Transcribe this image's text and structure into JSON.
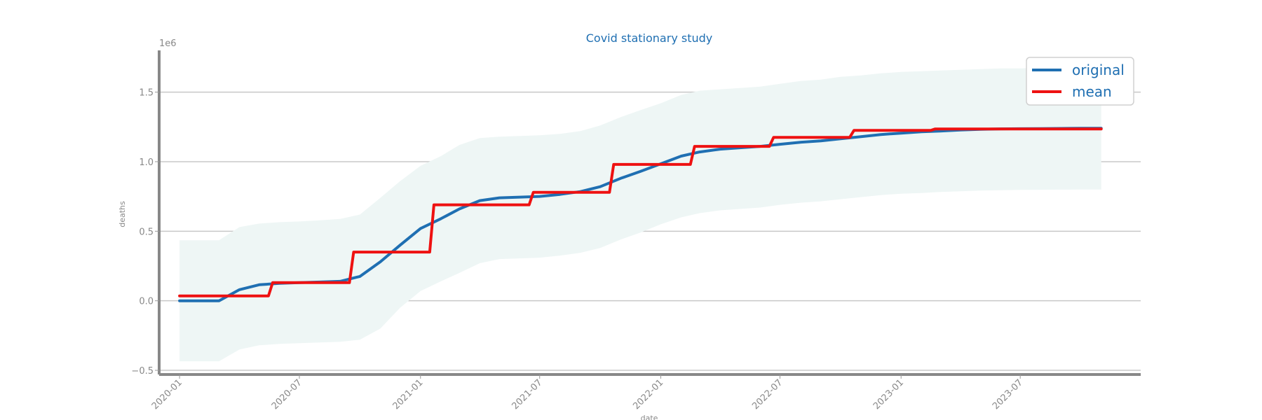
{
  "chart_data": {
    "type": "line",
    "title": "Covid stationary study",
    "xlabel": "date",
    "ylabel": "deaths",
    "y_offset_label": "1e6",
    "xlim": [
      "2019-12-01",
      "2023-12-31"
    ],
    "ylim": [
      -0.53,
      1.8
    ],
    "grid": "horizontal",
    "legend_position": "top-right",
    "x_ticks": [
      "2020-01",
      "2020-07",
      "2021-01",
      "2021-07",
      "2022-01",
      "2022-07",
      "2023-01",
      "2023-07"
    ],
    "y_ticks": [
      "−0.5",
      "0.0",
      "0.5",
      "1.0",
      "1.5"
    ],
    "y_tick_values": [
      -0.5,
      0,
      0.5,
      1.0,
      1.5
    ],
    "x": [
      "2020-01-01",
      "2020-03-01",
      "2020-04-01",
      "2020-05-01",
      "2020-06-01",
      "2020-07-01",
      "2020-08-01",
      "2020-09-01",
      "2020-10-01",
      "2020-11-01",
      "2020-12-01",
      "2021-01-01",
      "2021-02-01",
      "2021-03-01",
      "2021-04-01",
      "2021-05-01",
      "2021-06-01",
      "2021-07-01",
      "2021-08-01",
      "2021-09-01",
      "2021-10-01",
      "2021-11-01",
      "2021-12-01",
      "2022-01-01",
      "2022-02-01",
      "2022-03-01",
      "2022-04-01",
      "2022-05-01",
      "2022-06-01",
      "2022-07-01",
      "2022-08-01",
      "2022-09-01",
      "2022-10-01",
      "2022-11-01",
      "2022-12-01",
      "2023-01-01",
      "2023-02-01",
      "2023-03-01",
      "2023-04-01",
      "2023-05-01",
      "2023-06-01",
      "2023-07-01",
      "2023-08-01",
      "2023-09-01",
      "2023-10-01",
      "2023-11-01"
    ],
    "series": [
      {
        "name": "original",
        "color": "#1f6fb2",
        "values": [
          0.0,
          0.0,
          0.08,
          0.115,
          0.125,
          0.13,
          0.135,
          0.14,
          0.175,
          0.28,
          0.4,
          0.52,
          0.59,
          0.66,
          0.72,
          0.74,
          0.745,
          0.75,
          0.765,
          0.785,
          0.82,
          0.88,
          0.93,
          0.985,
          1.04,
          1.07,
          1.09,
          1.1,
          1.11,
          1.125,
          1.14,
          1.15,
          1.165,
          1.18,
          1.195,
          1.205,
          1.215,
          1.22,
          1.228,
          1.233,
          1.236,
          1.237,
          1.238,
          1.239,
          1.24,
          1.24
        ]
      },
      {
        "name": "mean",
        "color": "#ee1111",
        "steps": [
          {
            "from": "2020-01-01",
            "to": "2020-05-15",
            "value": 0.035
          },
          {
            "from": "2020-05-15",
            "to": "2020-09-15",
            "value": 0.13
          },
          {
            "from": "2020-09-15",
            "to": "2021-01-15",
            "value": 0.35
          },
          {
            "from": "2021-01-15",
            "to": "2021-06-15",
            "value": 0.69
          },
          {
            "from": "2021-06-15",
            "to": "2021-10-15",
            "value": 0.78
          },
          {
            "from": "2021-10-15",
            "to": "2022-02-15",
            "value": 0.98
          },
          {
            "from": "2022-02-15",
            "to": "2022-06-15",
            "value": 1.11
          },
          {
            "from": "2022-06-15",
            "to": "2022-10-15",
            "value": 1.175
          },
          {
            "from": "2022-10-15",
            "to": "2023-02-15",
            "value": 1.225
          },
          {
            "from": "2023-02-15",
            "to": "2023-11-01",
            "value": 1.235
          }
        ]
      }
    ],
    "band": {
      "color": "#eef6f5",
      "upper": [
        0.435,
        0.435,
        0.53,
        0.555,
        0.565,
        0.57,
        0.578,
        0.588,
        0.62,
        0.74,
        0.86,
        0.97,
        1.04,
        1.12,
        1.17,
        1.18,
        1.185,
        1.19,
        1.2,
        1.22,
        1.26,
        1.32,
        1.37,
        1.42,
        1.48,
        1.51,
        1.52,
        1.53,
        1.54,
        1.56,
        1.58,
        1.59,
        1.61,
        1.62,
        1.635,
        1.645,
        1.65,
        1.655,
        1.66,
        1.665,
        1.67,
        1.67,
        1.675,
        1.675,
        1.68,
        1.68
      ],
      "lower": [
        -0.435,
        -0.435,
        -0.35,
        -0.32,
        -0.31,
        -0.305,
        -0.3,
        -0.295,
        -0.28,
        -0.2,
        -0.05,
        0.07,
        0.14,
        0.2,
        0.27,
        0.3,
        0.305,
        0.31,
        0.325,
        0.345,
        0.38,
        0.44,
        0.49,
        0.55,
        0.6,
        0.63,
        0.65,
        0.66,
        0.67,
        0.69,
        0.705,
        0.715,
        0.73,
        0.745,
        0.76,
        0.77,
        0.775,
        0.782,
        0.787,
        0.792,
        0.795,
        0.797,
        0.798,
        0.799,
        0.8,
        0.8
      ]
    }
  }
}
